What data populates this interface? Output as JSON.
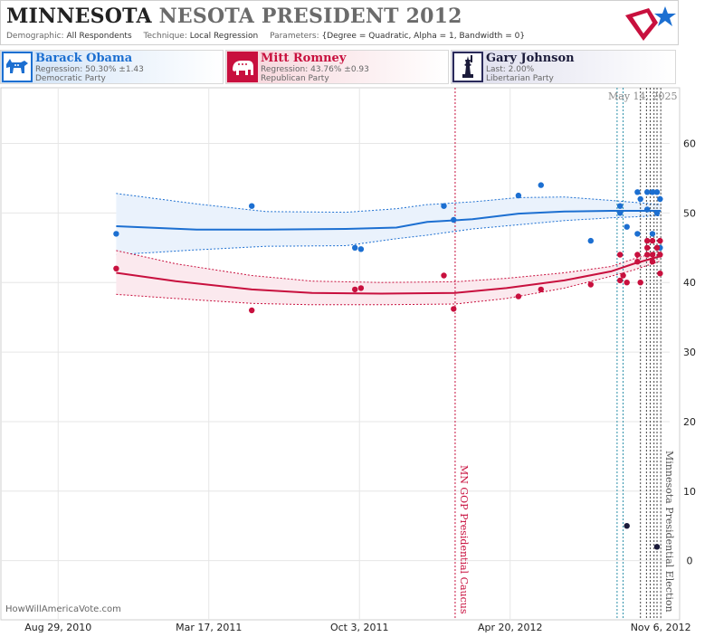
{
  "header": {
    "title_state": "MINNESOTA",
    "title_rest": "NESOTA PRESIDENT 2012",
    "demographic_label": "Demographic:",
    "demographic_value": "All Respondents",
    "technique_label": "Technique:",
    "technique_value": "Local Regression",
    "parameters_label": "Parameters:",
    "parameters_value": "{Degree = Quadratic, Alpha = 1, Bandwidth = 0}"
  },
  "candidates": [
    {
      "name": "Barack Obama",
      "line1": "Regression: 50.30% ±1.43",
      "line2": "Democratic Party",
      "color": "#1c6fd1",
      "icon": "donkey-icon"
    },
    {
      "name": "Mitt Romney",
      "line1": "Regression: 43.76% ±0.93",
      "line2": "Republican Party",
      "color": "#c8103e",
      "icon": "elephant-icon"
    },
    {
      "name": "Gary Johnson",
      "line1": "Last: 2.00%",
      "line2": "Libertarian Party",
      "color": "#1b1b3a",
      "icon": "liberty-statue-icon"
    }
  ],
  "today_label": "May 14, 2025",
  "credit": "HowWillAmericaVote.com",
  "chart_data": {
    "type": "scatter",
    "x_axis": {
      "ticks": [
        "Aug 29, 2010",
        "Mar 17, 2011",
        "Oct 3, 2011",
        "Apr 20, 2012",
        "Nov 6, 2012"
      ],
      "tick_x": [
        "2010-08-29",
        "2011-03-17",
        "2011-10-03",
        "2012-04-20",
        "2012-11-06"
      ],
      "range": [
        "2010-06-14",
        "2012-12-01"
      ]
    },
    "y_axis": {
      "ticks": [
        0,
        10,
        20,
        30,
        40,
        50,
        60
      ],
      "range": [
        -8.5,
        68
      ],
      "side": "right"
    },
    "grid": true,
    "events": [
      {
        "label": "MN GOP Presidential Caucus",
        "date": "2012-02-07",
        "color": "#c8103e"
      },
      {
        "label": "Minnesota Presidential Election",
        "date": "2012-11-06",
        "color": "#555555"
      }
    ],
    "poll_dates": [
      "2012-09-09",
      "2012-09-17",
      "2012-10-10",
      "2012-10-18",
      "2012-10-23",
      "2012-10-28",
      "2012-11-01"
    ],
    "series": [
      {
        "name": "Barack Obama",
        "color": "#1c6fd1",
        "points": [
          [
            "2010-11-14",
            47
          ],
          [
            "2011-05-13",
            51
          ],
          [
            "2011-09-27",
            45
          ],
          [
            "2011-10-05",
            44.8
          ],
          [
            "2012-01-23",
            51
          ],
          [
            "2012-02-05",
            49
          ],
          [
            "2012-05-01",
            52.5
          ],
          [
            "2012-05-31",
            54
          ],
          [
            "2012-08-05",
            46
          ],
          [
            "2012-09-13",
            51
          ],
          [
            "2012-09-13",
            50
          ],
          [
            "2012-09-22",
            48
          ],
          [
            "2012-10-06",
            53
          ],
          [
            "2012-10-06",
            47
          ],
          [
            "2012-10-10",
            52
          ],
          [
            "2012-10-19",
            53
          ],
          [
            "2012-10-19",
            50.5
          ],
          [
            "2012-10-26",
            53
          ],
          [
            "2012-10-26",
            47
          ],
          [
            "2012-11-01",
            53
          ],
          [
            "2012-11-01",
            50
          ],
          [
            "2012-11-05",
            52
          ],
          [
            "2012-11-05",
            45
          ]
        ],
        "trend": [
          [
            "2010-11-14",
            48.1
          ],
          [
            "2011-03-01",
            47.6
          ],
          [
            "2011-06-01",
            47.6
          ],
          [
            "2011-09-15",
            47.7
          ],
          [
            "2011-11-21",
            47.9
          ],
          [
            "2012-01-01",
            48.7
          ],
          [
            "2012-03-01",
            49.1
          ],
          [
            "2012-05-01",
            49.9
          ],
          [
            "2012-07-01",
            50.2
          ],
          [
            "2012-09-01",
            50.3
          ],
          [
            "2012-11-06",
            50.3
          ]
        ],
        "upper": [
          [
            "2010-11-14",
            52.8
          ],
          [
            "2011-03-01",
            51.3
          ],
          [
            "2011-06-01",
            50.2
          ],
          [
            "2011-09-15",
            50.1
          ],
          [
            "2011-11-21",
            50.6
          ],
          [
            "2012-01-01",
            51.2
          ],
          [
            "2012-03-01",
            51.6
          ],
          [
            "2012-05-01",
            52.2
          ],
          [
            "2012-07-01",
            52.3
          ],
          [
            "2012-09-01",
            51.8
          ],
          [
            "2012-11-06",
            51.2
          ]
        ],
        "lower": [
          [
            "2010-11-14",
            44
          ],
          [
            "2011-03-01",
            44.7
          ],
          [
            "2011-06-01",
            45.2
          ],
          [
            "2011-09-15",
            45.3
          ],
          [
            "2011-11-21",
            46.3
          ],
          [
            "2012-01-01",
            46.8
          ],
          [
            "2012-03-01",
            47.7
          ],
          [
            "2012-05-01",
            48.3
          ],
          [
            "2012-07-01",
            48.9
          ],
          [
            "2012-09-01",
            49.3
          ],
          [
            "2012-11-06",
            49.6
          ]
        ]
      },
      {
        "name": "Mitt Romney",
        "color": "#c8103e",
        "points": [
          [
            "2010-11-14",
            42
          ],
          [
            "2011-05-13",
            36
          ],
          [
            "2011-09-27",
            39
          ],
          [
            "2011-10-05",
            39.2
          ],
          [
            "2012-01-23",
            41
          ],
          [
            "2012-02-05",
            36.2
          ],
          [
            "2012-05-01",
            38
          ],
          [
            "2012-05-31",
            39
          ],
          [
            "2012-08-05",
            39.7
          ],
          [
            "2012-09-13",
            44
          ],
          [
            "2012-09-13",
            40.3
          ],
          [
            "2012-09-17",
            41
          ],
          [
            "2012-09-22",
            40
          ],
          [
            "2012-10-06",
            43
          ],
          [
            "2012-10-06",
            44
          ],
          [
            "2012-10-10",
            40
          ],
          [
            "2012-10-19",
            44
          ],
          [
            "2012-10-19",
            46
          ],
          [
            "2012-10-19",
            45
          ],
          [
            "2012-10-26",
            46
          ],
          [
            "2012-10-26",
            44
          ],
          [
            "2012-10-26",
            43
          ],
          [
            "2012-11-01",
            45
          ],
          [
            "2012-11-05",
            44
          ],
          [
            "2012-11-05",
            41.3
          ],
          [
            "2012-11-05",
            46
          ]
        ],
        "trend": [
          [
            "2010-11-14",
            41.4
          ],
          [
            "2011-02-01",
            40.2
          ],
          [
            "2011-05-13",
            39
          ],
          [
            "2011-08-01",
            38.5
          ],
          [
            "2011-11-01",
            38.4
          ],
          [
            "2012-02-07",
            38.5
          ],
          [
            "2012-04-15",
            39.2
          ],
          [
            "2012-07-01",
            40.3
          ],
          [
            "2012-09-01",
            41.6
          ],
          [
            "2012-10-01",
            42.7
          ],
          [
            "2012-11-06",
            43.8
          ]
        ],
        "upper": [
          [
            "2010-11-14",
            44.6
          ],
          [
            "2011-02-01",
            42.7
          ],
          [
            "2011-05-13",
            41
          ],
          [
            "2011-08-01",
            40.2
          ],
          [
            "2011-11-01",
            40
          ],
          [
            "2012-02-07",
            40.1
          ],
          [
            "2012-04-15",
            40.6
          ],
          [
            "2012-07-01",
            41.4
          ],
          [
            "2012-09-01",
            42.3
          ],
          [
            "2012-10-01",
            43.4
          ],
          [
            "2012-11-06",
            44.5
          ]
        ],
        "lower": [
          [
            "2010-11-14",
            38.3
          ],
          [
            "2011-02-01",
            37.7
          ],
          [
            "2011-05-13",
            37
          ],
          [
            "2011-08-01",
            36.8
          ],
          [
            "2011-11-01",
            36.8
          ],
          [
            "2012-02-07",
            36.9
          ],
          [
            "2012-04-15",
            37.7
          ],
          [
            "2012-07-01",
            39.2
          ],
          [
            "2012-09-01",
            40.9
          ],
          [
            "2012-10-01",
            41.8
          ],
          [
            "2012-11-06",
            43.1
          ]
        ]
      },
      {
        "name": "Gary Johnson",
        "color": "#1b1b3a",
        "points": [
          [
            "2012-09-22",
            5
          ],
          [
            "2012-11-01",
            2
          ]
        ]
      }
    ]
  }
}
